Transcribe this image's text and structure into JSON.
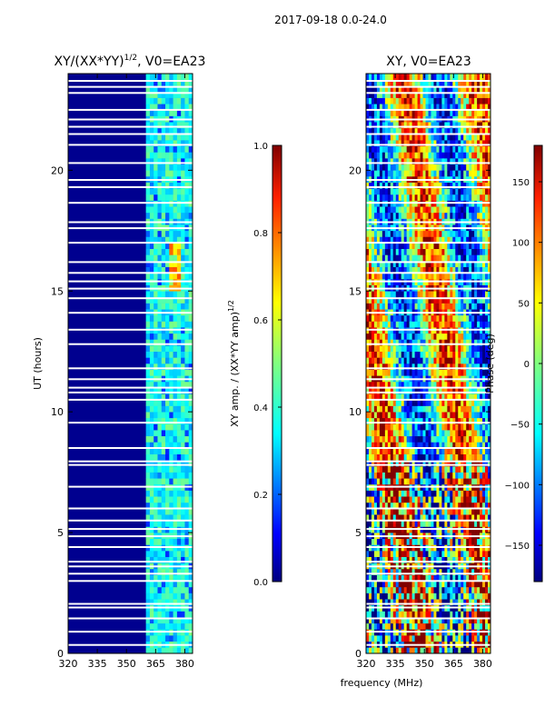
{
  "suptitle": "2017-09-18 0.0-24.0",
  "colors": {
    "background_panel": "#00008f",
    "gap_line": "#ffffff",
    "colormap": [
      "#000080",
      "#0000ff",
      "#0080ff",
      "#00ffff",
      "#80ff80",
      "#ffff00",
      "#ff8000",
      "#ff0000",
      "#800000"
    ]
  },
  "chart_data": [
    {
      "type": "heatmap",
      "panel": "amplitude",
      "title_main": "XY/(XX*YY)",
      "title_sup": "1/2",
      "title_tail": ", V0=EA23",
      "xlabel": "",
      "ylabel": "UT (hours)",
      "xlim": [
        320,
        384
      ],
      "ylim": [
        0,
        24
      ],
      "xticks": [
        320,
        335,
        350,
        365,
        380
      ],
      "yticks": [
        0,
        5,
        10,
        15,
        20
      ],
      "colorbar": {
        "label_main": "XY amp. / (XX*YY amp)",
        "label_sup": "1/2",
        "range": [
          0.0,
          1.0
        ],
        "ticks": [
          "0.0",
          "0.2",
          "0.4",
          "0.6",
          "0.8",
          "1.0"
        ]
      },
      "bright_band_mhz": [
        361,
        384
      ],
      "bright_band_level": [
        0.3,
        0.5
      ]
    },
    {
      "type": "heatmap",
      "panel": "phase",
      "title_main": "XY, V0=EA23",
      "xlabel": "frequency (MHz)",
      "ylabel": "",
      "xlim": [
        320,
        384
      ],
      "ylim": [
        0,
        24
      ],
      "xticks": [
        320,
        335,
        350,
        365,
        380
      ],
      "yticks": [
        0,
        5,
        10,
        15,
        20
      ],
      "colorbar": {
        "label_main": "Phase (deg)",
        "range": [
          -180,
          180
        ],
        "ticks": [
          "−150",
          "−100",
          "−50",
          "0",
          "50",
          "100",
          "150"
        ]
      }
    }
  ],
  "gap_hours": [
    0.35,
    0.9,
    1.45,
    1.9,
    2.05,
    3.0,
    3.3,
    3.6,
    3.8,
    4.4,
    4.85,
    5.15,
    5.5,
    6.0,
    6.9,
    7.8,
    7.95,
    8.5,
    9.55,
    10.5,
    10.8,
    11.0,
    11.35,
    11.8,
    12.8,
    13.4,
    14.1,
    14.7,
    15.1,
    15.4,
    15.75,
    16.2,
    17.0,
    17.6,
    17.85,
    18.65,
    19.3,
    19.6,
    20.3,
    21.05,
    21.5,
    21.8,
    22.1,
    22.5,
    23.2,
    23.45,
    23.7
  ]
}
